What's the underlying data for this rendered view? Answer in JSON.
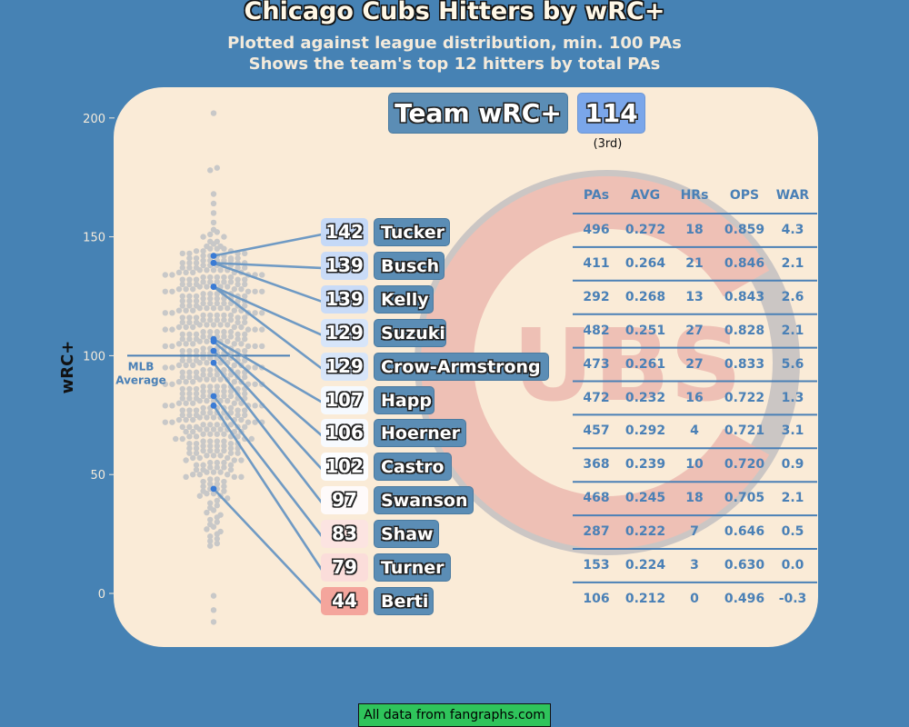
{
  "title": "Chicago Cubs Hitters by wRC+",
  "subtitle_line1": "Plotted against league distribution, min. 100 PAs",
  "subtitle_line2": "Shows the team's top 12 hitters by total PAs",
  "team": {
    "label": "Team wRC+",
    "value": "114",
    "rank": "(3rd)"
  },
  "mlb_line_label": [
    "MLB",
    "Average"
  ],
  "footer": "All data from fangraphs.com",
  "colors": {
    "background": "#4682b4",
    "panel": "#faebd7",
    "league_dot": "#c8c8c8",
    "team_dot": "#3a7bd5",
    "connector": "#6f9ac4",
    "logo_red": "#eec0b5"
  },
  "logo_text": "UBS",
  "table": {
    "columns": [
      "PAs",
      "AVG",
      "HRs",
      "OPS",
      "WAR"
    ],
    "rows": [
      [
        "496",
        "0.272",
        "18",
        "0.859",
        "4.3"
      ],
      [
        "411",
        "0.264",
        "21",
        "0.846",
        "2.1"
      ],
      [
        "292",
        "0.268",
        "13",
        "0.843",
        "2.6"
      ],
      [
        "482",
        "0.251",
        "27",
        "0.828",
        "2.1"
      ],
      [
        "473",
        "0.261",
        "27",
        "0.833",
        "5.6"
      ],
      [
        "472",
        "0.232",
        "16",
        "0.722",
        "1.3"
      ],
      [
        "457",
        "0.292",
        "4",
        "0.721",
        "3.1"
      ],
      [
        "368",
        "0.239",
        "10",
        "0.720",
        "0.9"
      ],
      [
        "468",
        "0.245",
        "18",
        "0.705",
        "2.1"
      ],
      [
        "287",
        "0.222",
        "7",
        "0.646",
        "0.5"
      ],
      [
        "153",
        "0.224",
        "3",
        "0.630",
        "0.0"
      ],
      [
        "106",
        "0.212",
        "0",
        "0.496",
        "-0.3"
      ]
    ]
  },
  "chart_data": {
    "type": "scatter",
    "title": "Chicago Cubs Hitters by wRC+",
    "ylabel": "wRC+",
    "ylim": [
      -15,
      205
    ],
    "yticks": [
      0,
      50,
      100,
      150,
      200
    ],
    "reference_line": {
      "value": 100,
      "label": "MLB Average"
    },
    "team_wrc_plus": 114,
    "team_rank": "3rd",
    "players": [
      {
        "name": "Tucker",
        "wrc_plus": 142
      },
      {
        "name": "Busch",
        "wrc_plus": 139
      },
      {
        "name": "Kelly",
        "wrc_plus": 139
      },
      {
        "name": "Suzuki",
        "wrc_plus": 129
      },
      {
        "name": "Crow-Armstrong",
        "wrc_plus": 129
      },
      {
        "name": "Happ",
        "wrc_plus": 107
      },
      {
        "name": "Hoerner",
        "wrc_plus": 106
      },
      {
        "name": "Castro",
        "wrc_plus": 102
      },
      {
        "name": "Swanson",
        "wrc_plus": 97
      },
      {
        "name": "Shaw",
        "wrc_plus": 83
      },
      {
        "name": "Turner",
        "wrc_plus": 79
      },
      {
        "name": "Berti",
        "wrc_plus": 44
      }
    ],
    "league_values": [
      202,
      179,
      178,
      168,
      164,
      160,
      156,
      153,
      152,
      151,
      150,
      150,
      148,
      148,
      147,
      146,
      146,
      145,
      145,
      145,
      144,
      144,
      144,
      143,
      143,
      143,
      143,
      142,
      142,
      142,
      142,
      141,
      141,
      141,
      141,
      140,
      140,
      140,
      140,
      140,
      139,
      139,
      139,
      139,
      139,
      138,
      138,
      138,
      138,
      138,
      137,
      137,
      137,
      137,
      137,
      136,
      136,
      136,
      136,
      136,
      135,
      135,
      135,
      135,
      135,
      134,
      134,
      134,
      134,
      134,
      133,
      133,
      133,
      133,
      133,
      132,
      132,
      132,
      132,
      132,
      131,
      131,
      131,
      131,
      131,
      130,
      130,
      130,
      130,
      130,
      129,
      129,
      129,
      129,
      129,
      128,
      128,
      128,
      128,
      128,
      127,
      127,
      127,
      127,
      127,
      126,
      126,
      126,
      126,
      126,
      125,
      125,
      125,
      125,
      125,
      124,
      124,
      124,
      124,
      124,
      123,
      123,
      123,
      123,
      123,
      122,
      122,
      122,
      122,
      122,
      121,
      121,
      121,
      121,
      121,
      120,
      120,
      120,
      120,
      120,
      119,
      119,
      119,
      119,
      119,
      118,
      118,
      118,
      118,
      118,
      117,
      117,
      117,
      117,
      117,
      116,
      116,
      116,
      116,
      116,
      115,
      115,
      115,
      115,
      115,
      114,
      114,
      114,
      114,
      114,
      113,
      113,
      113,
      113,
      113,
      112,
      112,
      112,
      112,
      112,
      111,
      111,
      111,
      111,
      111,
      110,
      110,
      110,
      110,
      110,
      109,
      109,
      109,
      109,
      109,
      108,
      108,
      108,
      108,
      108,
      107,
      107,
      107,
      107,
      107,
      106,
      106,
      106,
      106,
      106,
      105,
      105,
      105,
      105,
      105,
      104,
      104,
      104,
      104,
      104,
      103,
      103,
      103,
      103,
      103,
      102,
      102,
      102,
      102,
      102,
      101,
      101,
      101,
      101,
      101,
      100,
      100,
      100,
      100,
      100,
      99,
      99,
      99,
      99,
      99,
      98,
      98,
      98,
      98,
      98,
      97,
      97,
      97,
      97,
      97,
      96,
      96,
      96,
      96,
      96,
      95,
      95,
      95,
      95,
      95,
      94,
      94,
      94,
      94,
      94,
      93,
      93,
      93,
      93,
      93,
      92,
      92,
      92,
      92,
      92,
      91,
      91,
      91,
      91,
      91,
      90,
      90,
      90,
      90,
      90,
      89,
      89,
      89,
      89,
      89,
      88,
      88,
      88,
      88,
      88,
      87,
      87,
      87,
      87,
      87,
      86,
      86,
      86,
      86,
      86,
      85,
      85,
      85,
      85,
      85,
      84,
      84,
      84,
      84,
      84,
      83,
      83,
      83,
      83,
      83,
      82,
      82,
      82,
      82,
      82,
      81,
      81,
      81,
      81,
      81,
      80,
      80,
      80,
      80,
      80,
      79,
      79,
      79,
      79,
      79,
      78,
      78,
      78,
      78,
      78,
      77,
      77,
      77,
      77,
      77,
      76,
      76,
      76,
      76,
      76,
      75,
      75,
      75,
      75,
      75,
      74,
      74,
      74,
      74,
      74,
      73,
      73,
      73,
      73,
      73,
      72,
      72,
      72,
      72,
      72,
      71,
      71,
      71,
      71,
      71,
      70,
      70,
      70,
      70,
      70,
      69,
      69,
      69,
      69,
      69,
      68,
      68,
      68,
      68,
      67,
      67,
      67,
      67,
      66,
      66,
      66,
      66,
      65,
      65,
      65,
      65,
      64,
      64,
      64,
      64,
      63,
      63,
      63,
      63,
      62,
      62,
      62,
      62,
      61,
      61,
      61,
      61,
      60,
      60,
      60,
      60,
      59,
      59,
      59,
      59,
      58,
      58,
      58,
      57,
      57,
      57,
      56,
      56,
      56,
      55,
      55,
      55,
      54,
      54,
      54,
      53,
      53,
      53,
      52,
      52,
      52,
      51,
      51,
      51,
      50,
      50,
      50,
      49,
      49,
      49,
      48,
      48,
      47,
      47,
      46,
      46,
      45,
      45,
      44,
      44,
      43,
      43,
      42,
      42,
      41,
      41,
      40,
      39,
      38,
      37,
      36,
      35,
      34,
      33,
      32,
      31,
      30,
      29,
      28,
      27,
      26,
      25,
      24,
      23,
      22,
      21,
      20,
      -1,
      -7,
      -12
    ]
  }
}
